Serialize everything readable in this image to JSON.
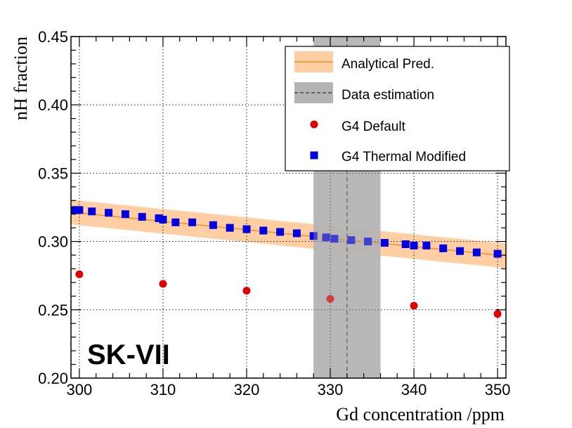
{
  "chart_data": {
    "type": "scatter",
    "xlabel": "Gd concentration /ppm",
    "ylabel": "nH fraction",
    "xlim": [
      299,
      351
    ],
    "ylim": [
      0.2,
      0.45
    ],
    "x_ticks": [
      300,
      310,
      320,
      330,
      340,
      350
    ],
    "x_tick_labels": [
      "300",
      "310",
      "320",
      "330",
      "340",
      "350"
    ],
    "y_ticks": [
      0.2,
      0.25,
      0.3,
      0.35,
      0.4,
      0.45
    ],
    "y_tick_labels": [
      "0.20",
      "0.25",
      "0.30",
      "0.35",
      "0.40",
      "0.45"
    ],
    "grid": true,
    "annotation": "SK-VII",
    "analytical_prediction": {
      "name": "Analytical Pred.",
      "color": "#f08a24",
      "band_color": "#ffcfa3",
      "x": [
        299,
        351
      ],
      "central": [
        0.3215,
        0.2895
      ],
      "upper": [
        0.3305,
        0.2985
      ],
      "lower": [
        0.3125,
        0.2805
      ]
    },
    "data_estimation": {
      "name": "Data estimation",
      "band_color": "#b4b4b4",
      "center": 332,
      "low": 328,
      "high": 336
    },
    "series": [
      {
        "name": "G4 Default",
        "marker": "circle",
        "color": "#e00000",
        "x": [
          300,
          310,
          320,
          330,
          340,
          350
        ],
        "y": [
          0.276,
          0.269,
          0.264,
          0.258,
          0.253,
          0.247
        ]
      },
      {
        "name": "G4 Thermal Modified",
        "marker": "square",
        "color": "#0000e0",
        "x": [
          299.5,
          300,
          301.5,
          303.5,
          305.5,
          307.5,
          309.5,
          310,
          311.5,
          313.5,
          316,
          318,
          320,
          322,
          324,
          326,
          328,
          329.5,
          330.5,
          332.5,
          334.5,
          336.5,
          339,
          340,
          341.5,
          343.5,
          345.5,
          347.5,
          350
        ],
        "y": [
          0.323,
          0.323,
          0.322,
          0.321,
          0.32,
          0.318,
          0.317,
          0.316,
          0.314,
          0.314,
          0.312,
          0.31,
          0.309,
          0.308,
          0.307,
          0.306,
          0.304,
          0.303,
          0.302,
          0.301,
          0.3,
          0.299,
          0.298,
          0.297,
          0.297,
          0.295,
          0.293,
          0.292,
          0.291
        ]
      }
    ],
    "legend": {
      "position": "top-right",
      "entries": [
        "Analytical Pred.",
        "Data estimation",
        "G4 Default",
        "G4 Thermal Modified"
      ]
    }
  }
}
